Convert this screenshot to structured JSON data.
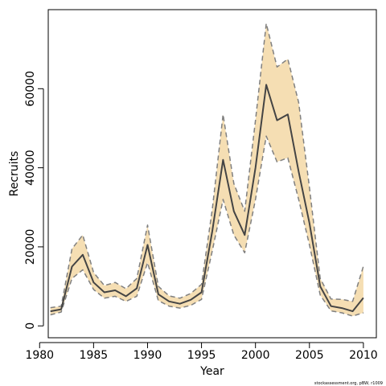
{
  "chart_data": {
    "type": "line",
    "xlabel": "Year",
    "ylabel": "Recruits",
    "xlim": [
      1980.8,
      2011.2
    ],
    "ylim": [
      -3000,
      80000
    ],
    "x_ticks": [
      1980,
      1985,
      1990,
      1995,
      2000,
      2005,
      2010
    ],
    "x_tick_labels": [
      "1980",
      "1985",
      "1990",
      "1995",
      "2000",
      "2005",
      "2010"
    ],
    "y_ticks": [
      0,
      20000,
      40000,
      60000
    ],
    "y_tick_labels": [
      "0",
      "20000",
      "40000",
      "60000"
    ],
    "grid": false,
    "x": [
      1981,
      1982,
      1983,
      1984,
      1985,
      1986,
      1987,
      1988,
      1989,
      1990,
      1991,
      1992,
      1993,
      1994,
      1995,
      1996,
      1997,
      1998,
      1999,
      2000,
      2001,
      2002,
      2003,
      2004,
      2005,
      2006,
      2007,
      2008,
      2009,
      2010
    ],
    "series": [
      {
        "role": "estimate",
        "values": [
          3700,
          4200,
          15000,
          18000,
          11000,
          8500,
          9000,
          7500,
          9500,
          20500,
          8000,
          6200,
          5600,
          6600,
          8500,
          24000,
          42000,
          29000,
          23000,
          40000,
          61000,
          52000,
          53500,
          39000,
          26000,
          10000,
          5000,
          4500,
          3700,
          7100
        ]
      },
      {
        "role": "upper",
        "values": [
          4600,
          5000,
          19500,
          23000,
          13500,
          10200,
          11000,
          9400,
          12000,
          25500,
          10000,
          7600,
          7000,
          8200,
          10500,
          29500,
          53500,
          36000,
          29000,
          52000,
          76500,
          65500,
          67500,
          56500,
          35000,
          12000,
          6800,
          6700,
          6200,
          15100
        ]
      },
      {
        "role": "lower",
        "values": [
          2800,
          3500,
          12000,
          14200,
          9200,
          7000,
          7500,
          6200,
          7500,
          16000,
          6400,
          5000,
          4500,
          5200,
          6700,
          19000,
          32000,
          23000,
          18500,
          32000,
          48000,
          41500,
          42500,
          32000,
          20500,
          7800,
          3800,
          3300,
          2500,
          3300
        ]
      }
    ],
    "colors": {
      "band": "#f5deb3",
      "estimate": "#444444",
      "bounds": "#808080"
    }
  },
  "footer": {
    "credit": "stockassessment.org, pBW, r1009"
  }
}
